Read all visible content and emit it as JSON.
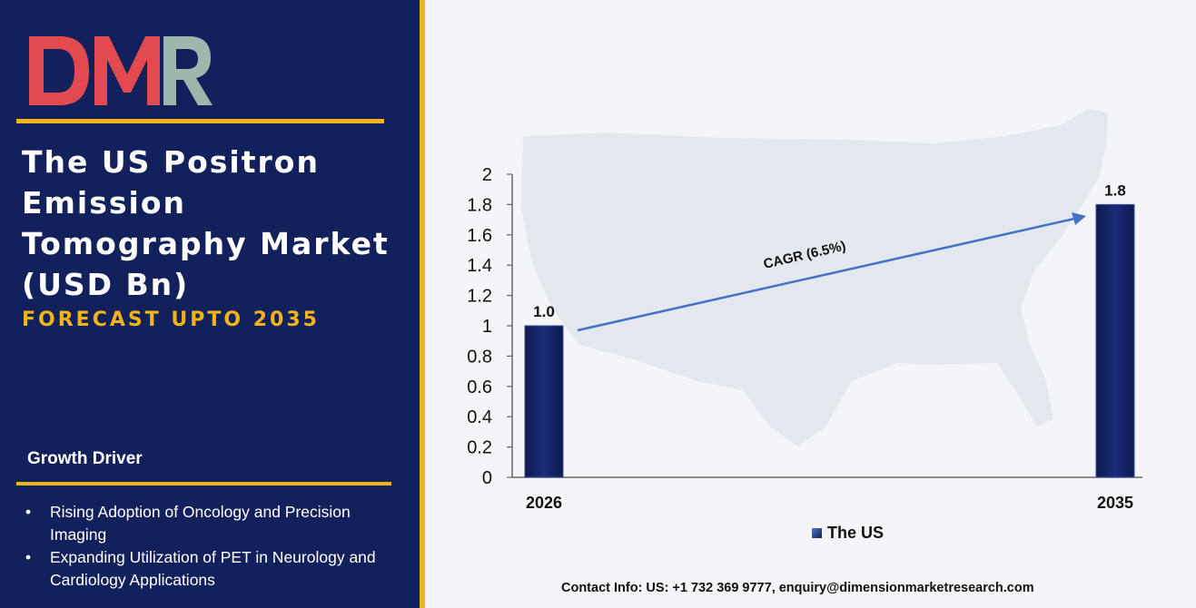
{
  "brand": {
    "logo_text": "DMR",
    "logo_colors": [
      "#e34a4f",
      "#9db7ad"
    ]
  },
  "header": {
    "title": "The US Positron Emission Tomography Market (USD Bn)",
    "subtitle": "FORECAST UPTO 2035"
  },
  "growth": {
    "heading": "Growth Driver",
    "items": [
      "Rising Adoption of Oncology and Precision Imaging",
      "Expanding Utilization of PET in Neurology and Cardiology Applications"
    ]
  },
  "contact": "Contact Info: US: +1 732 369 9777, enquiry@dimensionmarketresearch.com",
  "colors": {
    "panel": "#12215c",
    "accent": "#f0b419",
    "bar": "#12215c",
    "arrow": "#4472c4"
  },
  "chart_data": {
    "type": "bar",
    "categories": [
      "2026",
      "2035"
    ],
    "series": [
      {
        "name": "The US",
        "values": [
          1.0,
          1.8
        ],
        "labels": [
          "1.0",
          "1.8"
        ]
      }
    ],
    "ylim": [
      0,
      2
    ],
    "yticks": [
      "0",
      "0.2",
      "0.4",
      "0.6",
      "0.8",
      "1",
      "1.2",
      "1.4",
      "1.6",
      "1.8",
      "2"
    ],
    "annotation": "CAGR (6.5%)",
    "legend": "bottom",
    "grid": false
  }
}
